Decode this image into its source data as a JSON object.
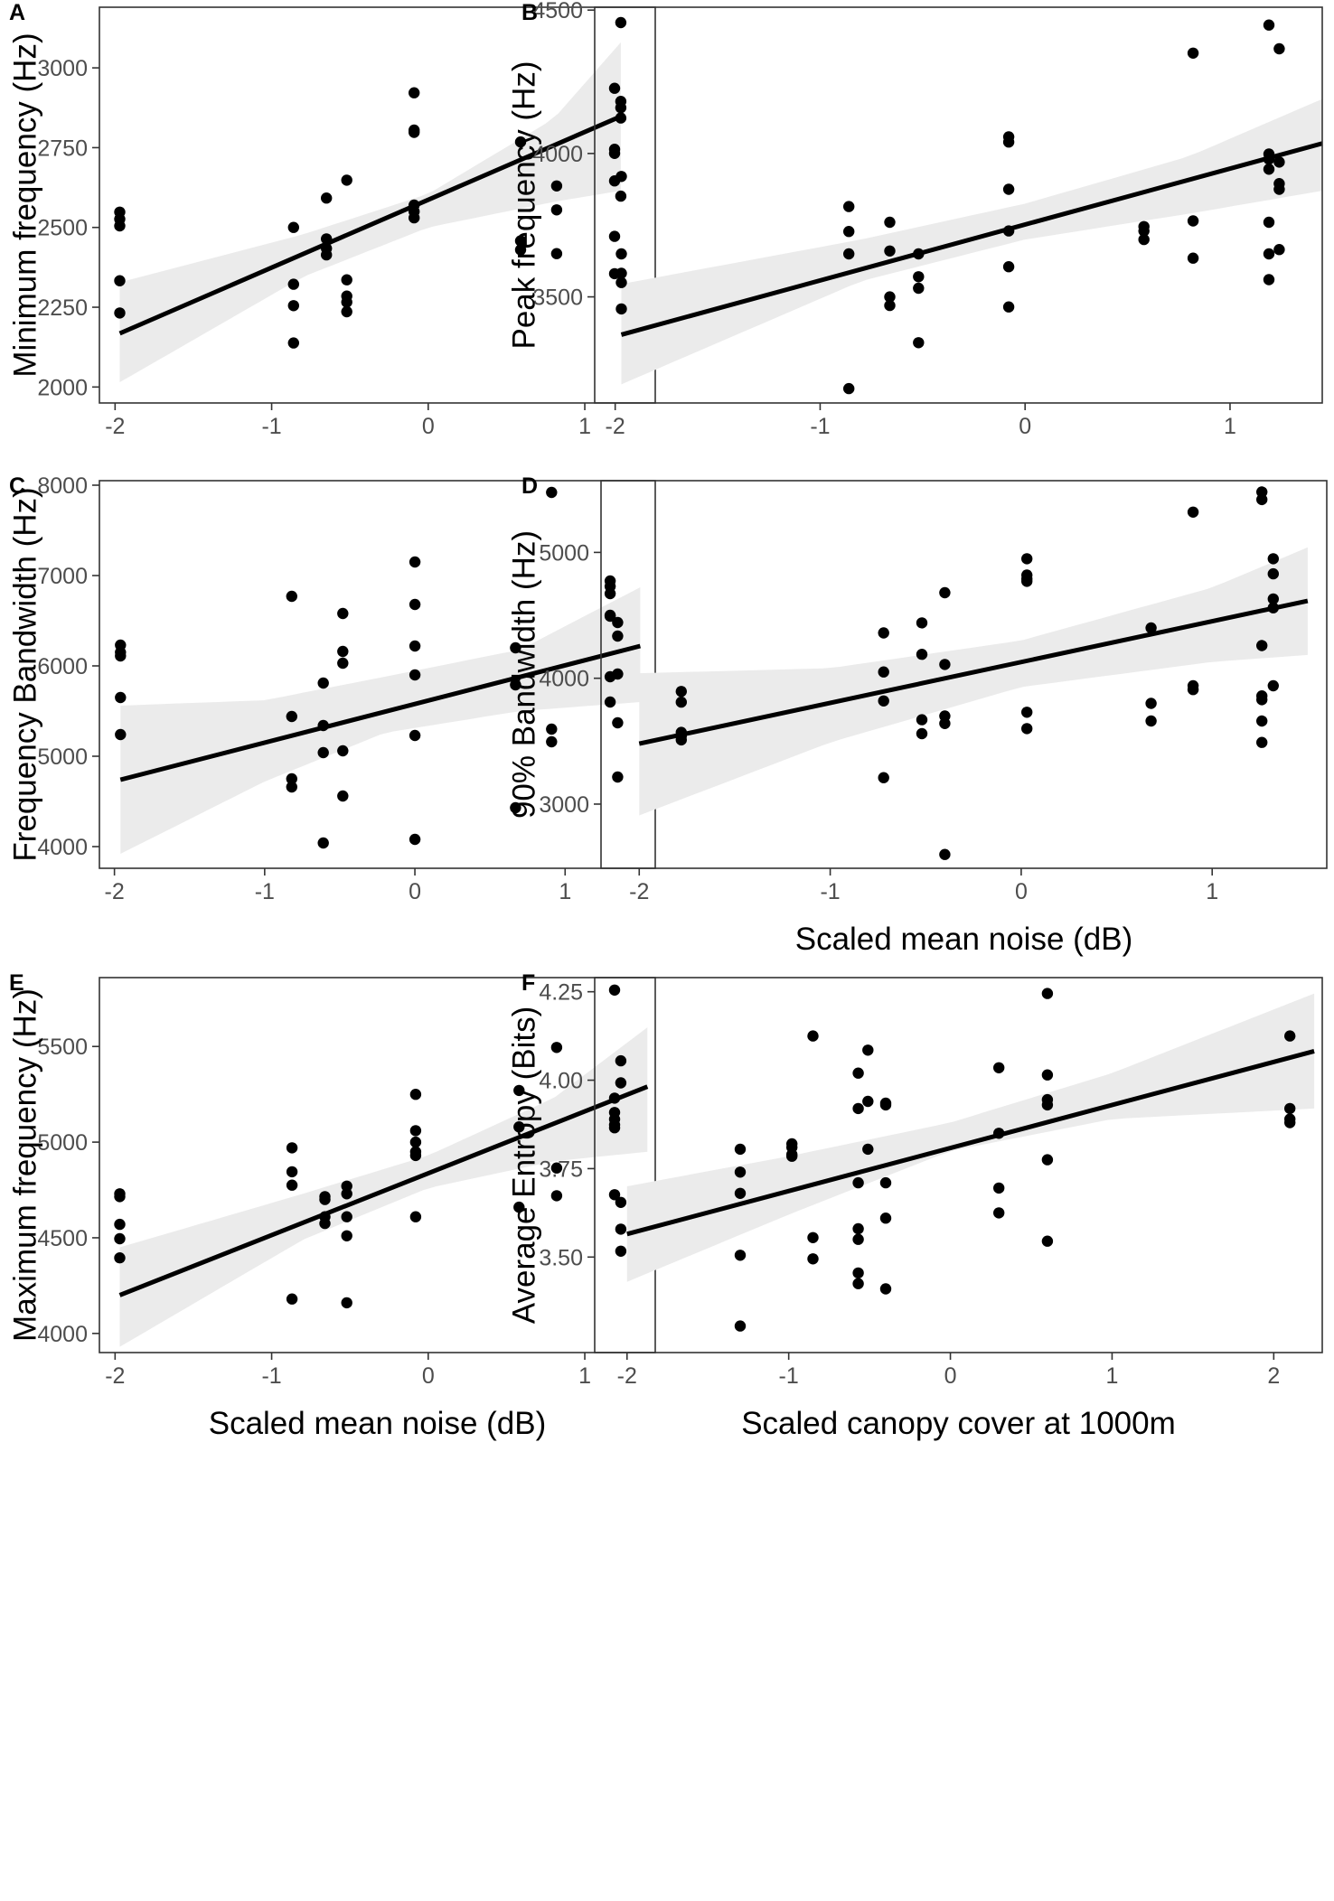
{
  "chart_data": [
    {
      "type": "scatter",
      "panel_letter": "A",
      "title": "",
      "xlabel": "",
      "ylabel": "Minimum frequency (Hz)",
      "xlim": [
        -2.1,
        1.45
      ],
      "ylim": [
        1950,
        3190
      ],
      "xticks": [
        -2,
        -1,
        0,
        1
      ],
      "xtick_labels": [
        "-2",
        "-1",
        "0",
        "1"
      ],
      "yticks": [
        2000,
        2250,
        2500,
        2750,
        3000
      ],
      "ytick_labels": [
        "2000",
        "2250",
        "2500",
        "2750",
        "3000"
      ],
      "grid": false,
      "points": [
        [
          -1.97,
          2548
        ],
        [
          -1.97,
          2526
        ],
        [
          -1.97,
          2505
        ],
        [
          -1.97,
          2333
        ],
        [
          -1.97,
          2232
        ],
        [
          -0.86,
          2500
        ],
        [
          -0.86,
          2322
        ],
        [
          -0.86,
          2255
        ],
        [
          -0.86,
          2138
        ],
        [
          -0.65,
          2592
        ],
        [
          -0.65,
          2464
        ],
        [
          -0.65,
          2434
        ],
        [
          -0.65,
          2414
        ],
        [
          -0.52,
          2648
        ],
        [
          -0.52,
          2336
        ],
        [
          -0.52,
          2285
        ],
        [
          -0.52,
          2266
        ],
        [
          -0.52,
          2236
        ],
        [
          -0.09,
          2922
        ],
        [
          -0.09,
          2805
        ],
        [
          -0.09,
          2798
        ],
        [
          -0.09,
          2570
        ],
        [
          -0.09,
          2550
        ],
        [
          -0.09,
          2530
        ],
        [
          0.59,
          2768
        ],
        [
          0.59,
          2458
        ],
        [
          0.59,
          2430
        ],
        [
          0.82,
          2630
        ],
        [
          0.82,
          2555
        ],
        [
          0.82,
          2418
        ],
        [
          1.19,
          2936
        ],
        [
          1.19,
          2745
        ],
        [
          1.19,
          2732
        ],
        [
          1.19,
          2646
        ],
        [
          1.19,
          2472
        ],
        [
          1.19,
          2355
        ],
        [
          1.23,
          3142
        ],
        [
          1.23,
          2895
        ],
        [
          1.23,
          2875
        ],
        [
          1.23,
          2843
        ],
        [
          1.23,
          2598
        ]
      ],
      "fit": {
        "x": [
          -1.97,
          1.23
        ],
        "y": [
          2168,
          2848
        ]
      },
      "ci_band": {
        "x": [
          -1.97,
          -0.8,
          0.0,
          0.8,
          1.23
        ],
        "lower": [
          2015,
          2345,
          2500,
          2580,
          2615
        ],
        "upper": [
          2328,
          2478,
          2605,
          2840,
          3080
        ]
      }
    },
    {
      "type": "scatter",
      "panel_letter": "B",
      "title": "",
      "xlabel": "",
      "ylabel": "Peak frequency (Hz)",
      "xlim": [
        -2.1,
        1.45
      ],
      "ylim": [
        3130,
        4510
      ],
      "xticks": [
        -2,
        -1,
        0,
        1
      ],
      "xtick_labels": [
        "-2",
        "-1",
        "0",
        "1"
      ],
      "yticks": [
        3500,
        4000,
        4500
      ],
      "ytick_labels": [
        "3500",
        "4000",
        "4500"
      ],
      "grid": false,
      "points": [
        [
          -1.97,
          3920
        ],
        [
          -1.97,
          3650
        ],
        [
          -1.97,
          3582
        ],
        [
          -1.97,
          3550
        ],
        [
          -1.97,
          3458
        ],
        [
          -0.86,
          3815
        ],
        [
          -0.86,
          3728
        ],
        [
          -0.86,
          3650
        ],
        [
          -0.86,
          3180
        ],
        [
          -0.66,
          3760
        ],
        [
          -0.66,
          3660
        ],
        [
          -0.66,
          3500
        ],
        [
          -0.66,
          3470
        ],
        [
          -0.52,
          3650
        ],
        [
          -0.52,
          3570
        ],
        [
          -0.52,
          3530
        ],
        [
          -0.52,
          3340
        ],
        [
          -0.08,
          4058
        ],
        [
          -0.08,
          4040
        ],
        [
          -0.08,
          3875
        ],
        [
          -0.08,
          3730
        ],
        [
          -0.08,
          3605
        ],
        [
          -0.08,
          3465
        ],
        [
          0.58,
          3745
        ],
        [
          0.58,
          3730
        ],
        [
          0.58,
          3700
        ],
        [
          0.82,
          4350
        ],
        [
          0.82,
          3765
        ],
        [
          0.82,
          3635
        ],
        [
          1.19,
          4448
        ],
        [
          1.19,
          3998
        ],
        [
          1.19,
          3980
        ],
        [
          1.19,
          3945
        ],
        [
          1.19,
          3760
        ],
        [
          1.19,
          3650
        ],
        [
          1.19,
          3560
        ],
        [
          1.24,
          4365
        ],
        [
          1.24,
          3970
        ],
        [
          1.24,
          3895
        ],
        [
          1.24,
          3875
        ],
        [
          1.24,
          3665
        ]
      ],
      "fit": {
        "x": [
          -1.97,
          1.45
        ],
        "y": [
          3368,
          4035
        ]
      },
      "ci_band": {
        "x": [
          -1.97,
          -0.8,
          0.0,
          0.8,
          1.45
        ],
        "lower": [
          3195,
          3555,
          3700,
          3790,
          3870
        ],
        "upper": [
          3545,
          3700,
          3825,
          3990,
          4190
        ]
      }
    },
    {
      "type": "scatter",
      "panel_letter": "C",
      "title": "",
      "xlabel": "",
      "ylabel": "Frequency Bandwidth (Hz)",
      "xlim": [
        -2.1,
        1.6
      ],
      "ylim": [
        3760,
        8050
      ],
      "xticks": [
        -2,
        -1,
        0,
        1
      ],
      "xtick_labels": [
        "-2",
        "-1",
        "0",
        "1"
      ],
      "yticks": [
        4000,
        5000,
        6000,
        7000,
        8000
      ],
      "ytick_labels": [
        "4000",
        "5000",
        "6000",
        "7000",
        "8000"
      ],
      "grid": false,
      "points": [
        [
          -1.96,
          6230
        ],
        [
          -1.96,
          6150
        ],
        [
          -1.96,
          6110
        ],
        [
          -1.96,
          5650
        ],
        [
          -1.96,
          5240
        ],
        [
          -0.82,
          6770
        ],
        [
          -0.82,
          5440
        ],
        [
          -0.82,
          4750
        ],
        [
          -0.82,
          4660
        ],
        [
          -0.61,
          5810
        ],
        [
          -0.61,
          5340
        ],
        [
          -0.61,
          5040
        ],
        [
          -0.61,
          4040
        ],
        [
          -0.48,
          6580
        ],
        [
          -0.48,
          6160
        ],
        [
          -0.48,
          6030
        ],
        [
          -0.48,
          5060
        ],
        [
          -0.48,
          4560
        ],
        [
          0.0,
          7150
        ],
        [
          0.0,
          6680
        ],
        [
          0.0,
          6220
        ],
        [
          0.0,
          5900
        ],
        [
          0.0,
          5230
        ],
        [
          0.0,
          4080
        ],
        [
          0.67,
          6200
        ],
        [
          0.67,
          5790
        ],
        [
          0.67,
          4430
        ],
        [
          0.91,
          7920
        ],
        [
          0.91,
          5300
        ],
        [
          0.91,
          5160
        ],
        [
          1.3,
          6940
        ],
        [
          1.3,
          6880
        ],
        [
          1.3,
          6800
        ],
        [
          1.3,
          6560
        ],
        [
          1.3,
          6550
        ],
        [
          1.3,
          5880
        ],
        [
          1.3,
          5600
        ],
        [
          1.35,
          6480
        ],
        [
          1.35,
          6330
        ],
        [
          1.35,
          5910
        ],
        [
          1.35,
          5370
        ],
        [
          1.35,
          4770
        ]
      ],
      "fit": {
        "x": [
          -1.96,
          1.5
        ],
        "y": [
          4740,
          6220
        ]
      },
      "ci_band": {
        "x": [
          -1.96,
          -1.0,
          -0.2,
          0.7,
          1.5
        ],
        "lower": [
          3920,
          4720,
          5260,
          5500,
          5600
        ],
        "upper": [
          5560,
          5620,
          5880,
          6180,
          6870
        ]
      }
    },
    {
      "type": "scatter",
      "panel_letter": "D",
      "title": "",
      "xlabel": "Scaled mean noise (dB)",
      "ylabel": "90% Bandwidth (Hz)",
      "xlim": [
        -2.2,
        1.6
      ],
      "ylim": [
        2490,
        5570
      ],
      "xticks": [
        -2,
        -1,
        0,
        1
      ],
      "xtick_labels": [
        "-2",
        "-1",
        "0",
        "1"
      ],
      "yticks": [
        3000,
        4000,
        5000
      ],
      "ytick_labels": [
        "3000",
        "4000",
        "5000"
      ],
      "grid": false,
      "points": [
        [
          -1.78,
          3895
        ],
        [
          -1.78,
          3810
        ],
        [
          -1.78,
          3570
        ],
        [
          -1.78,
          3540
        ],
        [
          -1.78,
          3510
        ],
        [
          -0.72,
          4360
        ],
        [
          -0.72,
          4050
        ],
        [
          -0.72,
          3820
        ],
        [
          -0.72,
          3210
        ],
        [
          -0.52,
          4440
        ],
        [
          -0.52,
          4190
        ],
        [
          -0.52,
          3670
        ],
        [
          -0.52,
          3560
        ],
        [
          -0.4,
          4680
        ],
        [
          -0.4,
          4110
        ],
        [
          -0.4,
          3700
        ],
        [
          -0.4,
          3640
        ],
        [
          -0.4,
          2600
        ],
        [
          0.03,
          4950
        ],
        [
          0.03,
          4820
        ],
        [
          0.03,
          4790
        ],
        [
          0.03,
          4770
        ],
        [
          0.03,
          3730
        ],
        [
          0.03,
          3600
        ],
        [
          0.68,
          4400
        ],
        [
          0.68,
          3800
        ],
        [
          0.68,
          3660
        ],
        [
          0.9,
          5320
        ],
        [
          0.9,
          3940
        ],
        [
          0.9,
          3910
        ],
        [
          1.26,
          5480
        ],
        [
          1.26,
          5420
        ],
        [
          1.26,
          4260
        ],
        [
          1.26,
          3860
        ],
        [
          1.26,
          3830
        ],
        [
          1.26,
          3660
        ],
        [
          1.26,
          3490
        ],
        [
          1.32,
          4950
        ],
        [
          1.32,
          4830
        ],
        [
          1.32,
          4630
        ],
        [
          1.32,
          4560
        ],
        [
          1.32,
          3940
        ]
      ],
      "fit": {
        "x": [
          -2.0,
          1.5
        ],
        "y": [
          3480,
          4615
        ]
      },
      "ci_band": {
        "x": [
          -2.0,
          -1.0,
          0.0,
          1.0,
          1.5
        ],
        "lower": [
          2910,
          3490,
          3930,
          4130,
          4185
        ],
        "upper": [
          4040,
          4080,
          4300,
          4720,
          5040
        ]
      }
    },
    {
      "type": "scatter",
      "panel_letter": "E",
      "title": "",
      "xlabel": "Scaled mean noise (dB)",
      "ylabel": "Maximum frequency (Hz)",
      "xlim": [
        -2.1,
        1.45
      ],
      "ylim": [
        3900,
        5860
      ],
      "xticks": [
        -2,
        -1,
        0,
        1
      ],
      "xtick_labels": [
        "-2",
        "-1",
        "0",
        "1"
      ],
      "yticks": [
        4000,
        4500,
        5000,
        5500
      ],
      "ytick_labels": [
        "4000",
        "4500",
        "5000",
        "5500"
      ],
      "grid": false,
      "points": [
        [
          -1.97,
          4730
        ],
        [
          -1.97,
          4715
        ],
        [
          -1.97,
          4570
        ],
        [
          -1.97,
          4495
        ],
        [
          -1.97,
          4395
        ],
        [
          -0.87,
          4970
        ],
        [
          -0.87,
          4845
        ],
        [
          -0.87,
          4775
        ],
        [
          -0.87,
          4180
        ],
        [
          -0.66,
          4715
        ],
        [
          -0.66,
          4700
        ],
        [
          -0.66,
          4610
        ],
        [
          -0.66,
          4575
        ],
        [
          -0.52,
          4770
        ],
        [
          -0.52,
          4730
        ],
        [
          -0.52,
          4610
        ],
        [
          -0.52,
          4510
        ],
        [
          -0.52,
          4160
        ],
        [
          -0.08,
          5250
        ],
        [
          -0.08,
          5060
        ],
        [
          -0.08,
          5000
        ],
        [
          -0.08,
          4950
        ],
        [
          -0.08,
          4930
        ],
        [
          -0.08,
          4610
        ],
        [
          0.58,
          5270
        ],
        [
          0.58,
          5080
        ],
        [
          0.58,
          4660
        ],
        [
          0.82,
          5495
        ],
        [
          0.82,
          4865
        ],
        [
          0.82,
          4720
        ],
        [
          1.19,
          5795
        ],
        [
          1.19,
          5230
        ],
        [
          1.19,
          5155
        ],
        [
          1.19,
          5120
        ],
        [
          1.19,
          5090
        ],
        [
          1.19,
          5075
        ],
        [
          1.19,
          4725
        ],
        [
          1.23,
          5425
        ],
        [
          1.23,
          5310
        ],
        [
          1.23,
          4685
        ],
        [
          1.23,
          4545
        ],
        [
          1.23,
          4430
        ]
      ],
      "fit": {
        "x": [
          -1.97,
          1.4
        ],
        "y": [
          4200,
          5290
        ]
      },
      "ci_band": {
        "x": [
          -1.97,
          -0.8,
          0.0,
          0.8,
          1.4
        ],
        "lower": [
          3930,
          4490,
          4760,
          4900,
          4950
        ],
        "upper": [
          4450,
          4730,
          4930,
          5230,
          5600
        ]
      }
    },
    {
      "type": "scatter",
      "panel_letter": "F",
      "title": "",
      "xlabel": "Scaled canopy cover at 1000m",
      "ylabel": "Average Entropy (Bits)",
      "xlim": [
        -2.2,
        2.3
      ],
      "ylim": [
        3.23,
        4.29
      ],
      "xticks": [
        -2,
        -1,
        0,
        1,
        2
      ],
      "xtick_labels": [
        "-2",
        "-1",
        "0",
        "1",
        "2"
      ],
      "yticks": [
        3.5,
        3.75,
        4.0,
        4.25
      ],
      "ytick_labels": [
        "3.50",
        "3.75",
        "4.00",
        "4.25"
      ],
      "grid": false,
      "points": [
        [
          -1.3,
          3.805
        ],
        [
          -1.3,
          3.74
        ],
        [
          -1.3,
          3.68
        ],
        [
          -1.3,
          3.505
        ],
        [
          -1.3,
          3.305
        ],
        [
          -0.98,
          3.82
        ],
        [
          -0.98,
          3.81
        ],
        [
          -0.98,
          3.79
        ],
        [
          -0.98,
          3.785
        ],
        [
          -0.85,
          4.125
        ],
        [
          -0.85,
          3.555
        ],
        [
          -0.85,
          3.495
        ],
        [
          -0.57,
          4.02
        ],
        [
          -0.57,
          3.92
        ],
        [
          -0.57,
          3.71
        ],
        [
          -0.57,
          3.58
        ],
        [
          -0.57,
          3.55
        ],
        [
          -0.57,
          3.455
        ],
        [
          -0.57,
          3.425
        ],
        [
          -0.51,
          4.085
        ],
        [
          -0.51,
          3.94
        ],
        [
          -0.51,
          3.805
        ],
        [
          -0.4,
          3.935
        ],
        [
          -0.4,
          3.93
        ],
        [
          -0.4,
          3.71
        ],
        [
          -0.4,
          3.61
        ],
        [
          -0.4,
          3.41
        ],
        [
          0.3,
          4.035
        ],
        [
          0.3,
          3.85
        ],
        [
          0.3,
          3.695
        ],
        [
          0.3,
          3.625
        ],
        [
          0.6,
          4.245
        ],
        [
          0.6,
          4.015
        ],
        [
          0.6,
          3.945
        ],
        [
          0.6,
          3.93
        ],
        [
          0.6,
          3.775
        ],
        [
          0.6,
          3.545
        ],
        [
          2.1,
          4.125
        ],
        [
          2.1,
          3.92
        ],
        [
          2.1,
          3.89
        ],
        [
          2.1,
          3.88
        ]
      ],
      "fit": {
        "x": [
          -2.0,
          2.25
        ],
        "y": [
          3.565,
          4.082
        ]
      },
      "ci_band": {
        "x": [
          -2.0,
          -1.0,
          0.0,
          1.0,
          2.25
        ],
        "lower": [
          3.43,
          3.62,
          3.8,
          3.89,
          3.92
        ],
        "upper": [
          3.7,
          3.785,
          3.88,
          4.02,
          4.245
        ]
      }
    }
  ]
}
